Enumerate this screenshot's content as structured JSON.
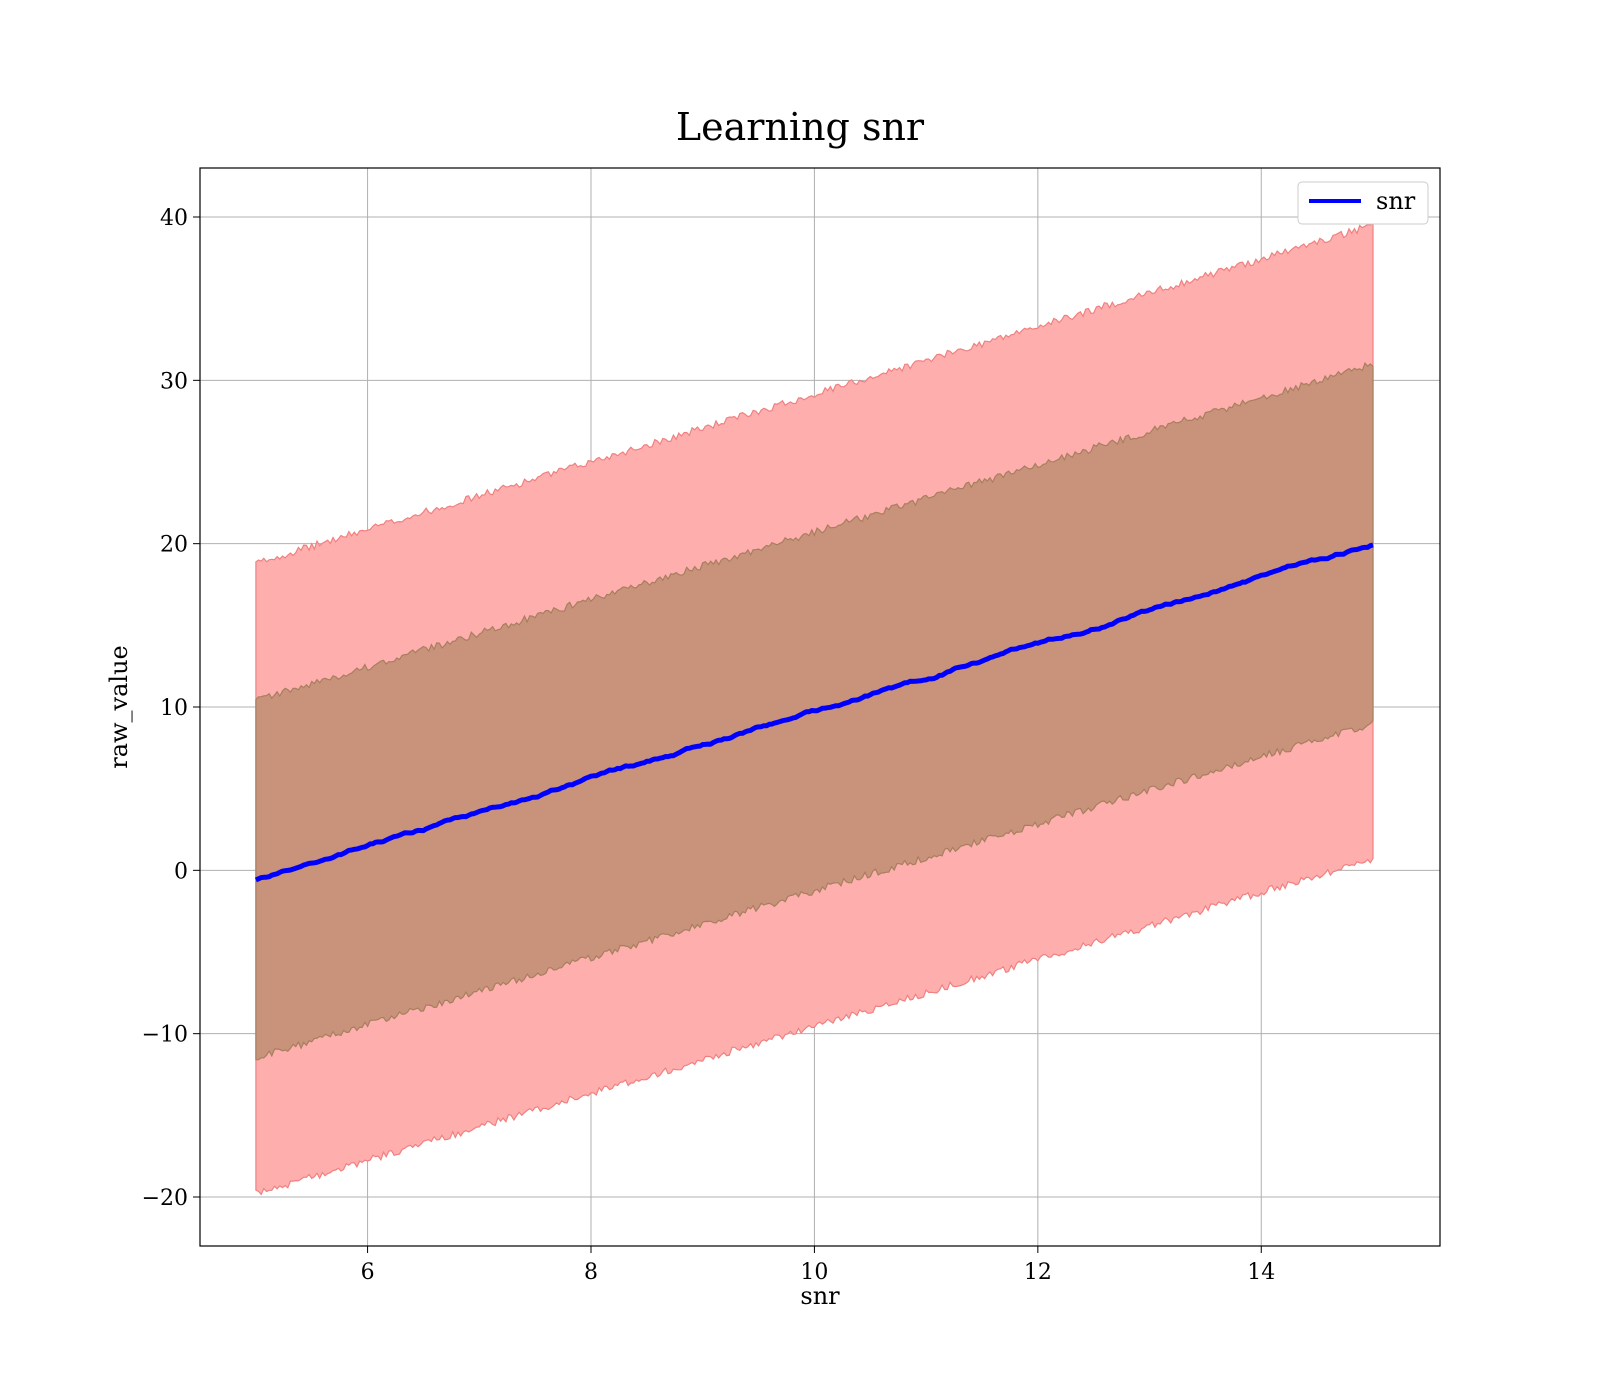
{
  "chart_data": {
    "type": "area",
    "title": "Learning snr",
    "xlabel": "snr",
    "ylabel": "raw_value",
    "xlim": [
      4.5,
      15.6
    ],
    "ylim": [
      -23,
      43
    ],
    "x_ticks": [
      6,
      8,
      10,
      12,
      14
    ],
    "y_ticks": [
      -20,
      -10,
      0,
      10,
      20,
      30,
      40
    ],
    "x_tick_labels": [
      "6",
      "8",
      "10",
      "12",
      "14"
    ],
    "y_tick_labels": [
      "−20",
      "−10",
      "0",
      "10",
      "20",
      "30",
      "40"
    ],
    "grid": true,
    "legend_position": "top-right",
    "series": [
      {
        "name": "snr",
        "color": "#0000ff",
        "x_start": 5,
        "x_end": 15,
        "mean": {
          "start": -0.6,
          "end": 20.0
        },
        "band_1std": {
          "lower_start": -11.5,
          "upper_start": 10.4,
          "lower_end": 9.0,
          "upper_end": 31.0,
          "color": "#c8937a"
        },
        "band_2std": {
          "lower_start": -19.8,
          "upper_start": 18.8,
          "lower_end": 0.7,
          "upper_end": 39.5,
          "color": "#ffaeae"
        }
      }
    ]
  }
}
